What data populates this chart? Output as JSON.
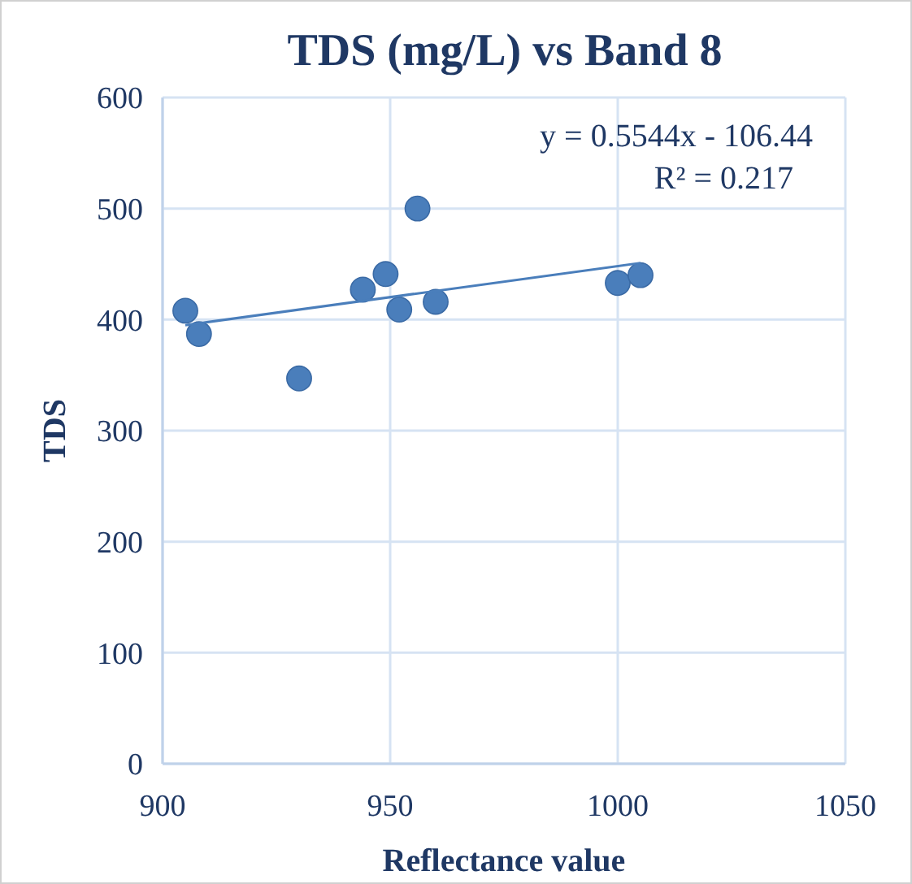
{
  "chart_data": {
    "type": "scatter",
    "title": "TDS (mg/L) vs Band 8",
    "xlabel": "Reflectance value",
    "ylabel": "TDS",
    "xlim": [
      900,
      1050
    ],
    "xticks": [
      900,
      950,
      1000,
      1050
    ],
    "ylim": [
      0,
      600
    ],
    "yticks": [
      0,
      100,
      200,
      300,
      400,
      500,
      600
    ],
    "grid": true,
    "series": [
      {
        "marker": "circle",
        "color": "#4a7ebb",
        "x": [
          905,
          908,
          930,
          944,
          949,
          952,
          956,
          960,
          1000,
          1005
        ],
        "values": [
          408,
          387,
          347,
          427,
          441,
          409,
          500,
          416,
          433,
          440
        ]
      },
      {
        "type": "line",
        "color": "#4a7ebb",
        "x": [
          905,
          1005
        ],
        "values": [
          395,
          451
        ]
      }
    ],
    "annotations": [
      "y = 0.5544x - 106.44",
      "R² = 0.217"
    ]
  }
}
